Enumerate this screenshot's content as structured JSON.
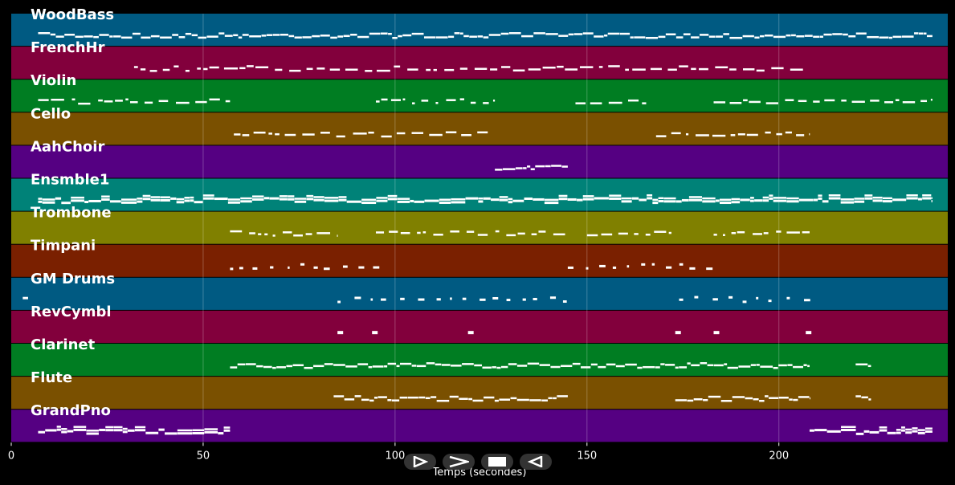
{
  "chart_data": {
    "type": "piano-roll",
    "xlabel": "Temps (secondes)",
    "xlim": [
      0,
      244
    ],
    "xticks": [
      0,
      50,
      100,
      150,
      200
    ],
    "grid": true,
    "tracks": [
      {
        "name": "WoodBass",
        "color": "#005a82",
        "segments": [
          [
            7,
            240
          ]
        ],
        "pattern": "line"
      },
      {
        "name": "FrenchHr",
        "color": "#82003c",
        "segments": [
          [
            32,
            208
          ]
        ],
        "pattern": "dashed"
      },
      {
        "name": "Violin",
        "color": "#007d22",
        "segments": [
          [
            7,
            57
          ],
          [
            95,
            126
          ],
          [
            147,
            167
          ],
          [
            183,
            240
          ]
        ],
        "pattern": "dashed"
      },
      {
        "name": "Cello",
        "color": "#7a5000",
        "segments": [
          [
            58,
            126
          ],
          [
            168,
            208
          ]
        ],
        "pattern": "dashed"
      },
      {
        "name": "AahChoir",
        "color": "#550082",
        "segments": [
          [
            126,
            145
          ]
        ],
        "pattern": "line"
      },
      {
        "name": "Ensmble1",
        "color": "#008278",
        "segments": [
          [
            7,
            240
          ]
        ],
        "pattern": "dense"
      },
      {
        "name": "Trombone",
        "color": "#808000",
        "segments": [
          [
            57,
            85
          ],
          [
            95,
            145
          ],
          [
            150,
            172
          ],
          [
            183,
            208
          ]
        ],
        "pattern": "dashed"
      },
      {
        "name": "Timpani",
        "color": "#7a2000",
        "segments": [
          [
            57,
            96
          ],
          [
            145,
            185
          ]
        ],
        "pattern": "dots"
      },
      {
        "name": "GM Drums",
        "color": "#005a82",
        "segments": [
          [
            3,
            5
          ],
          [
            85,
            146
          ],
          [
            174,
            209
          ]
        ],
        "pattern": "dots"
      },
      {
        "name": "RevCymbl",
        "color": "#82003c",
        "points": [
          85,
          94,
          119,
          173,
          183,
          207
        ],
        "pattern": "hits"
      },
      {
        "name": "Clarinet",
        "color": "#007d22",
        "segments": [
          [
            57,
            208
          ],
          [
            220,
            224
          ]
        ],
        "pattern": "line"
      },
      {
        "name": "Flute",
        "color": "#7a5000",
        "segments": [
          [
            84,
            145
          ],
          [
            173,
            208
          ],
          [
            220,
            224
          ]
        ],
        "pattern": "line"
      },
      {
        "name": "GrandPno",
        "color": "#550082",
        "segments": [
          [
            7,
            57
          ],
          [
            208,
            240
          ]
        ],
        "pattern": "dense"
      }
    ]
  },
  "controls": [
    {
      "name": "play-button",
      "glyph": "▷"
    },
    {
      "name": "forward-button",
      "glyph": "＞"
    },
    {
      "name": "stop-button",
      "glyph": "■"
    },
    {
      "name": "back-button",
      "glyph": "◁"
    }
  ]
}
